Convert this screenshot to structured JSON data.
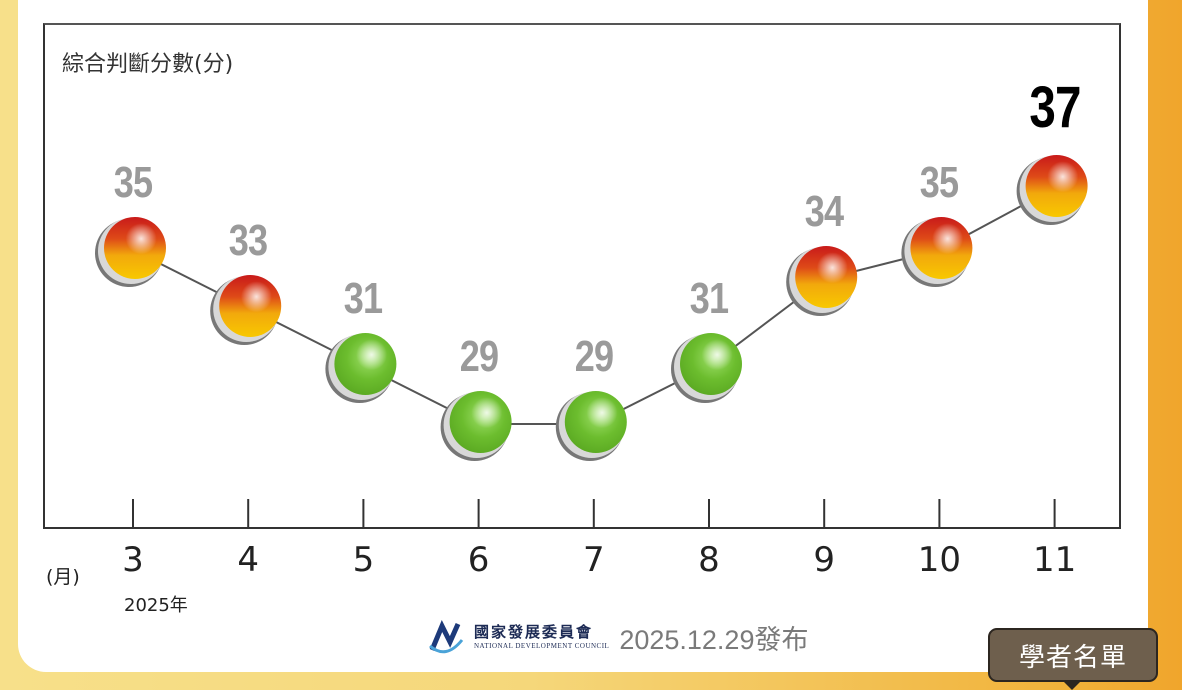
{
  "chart": {
    "ytitle": "綜合判斷分數(分)",
    "xunit": "(月)",
    "year": "2025年"
  },
  "footer": {
    "org_cn": "國家發展委員會",
    "org_en": "NATIONAL DEVELOPMENT COUNCIL",
    "publish": "2025.12.29發布"
  },
  "tooltip_button": "學者名單",
  "colors": {
    "red_yellow_top": "#cc1f1f",
    "red_yellow_bottom": "#f7c400",
    "green": "#6cbd2e",
    "label_gray": "#9a9a9a",
    "latest_label": "#000000",
    "orange_side": "#f0a52c"
  },
  "chart_data": {
    "type": "line",
    "title": "綜合判斷分數(分)",
    "xlabel": "(月)",
    "ylabel": "綜合判斷分數(分)",
    "year": "2025年",
    "categories": [
      "3",
      "4",
      "5",
      "6",
      "7",
      "8",
      "9",
      "10",
      "11"
    ],
    "values": [
      35,
      33,
      31,
      29,
      29,
      31,
      34,
      35,
      37
    ],
    "signals": [
      "yellow-red",
      "yellow-red",
      "green",
      "green",
      "green",
      "green",
      "yellow-red",
      "yellow-red",
      "yellow-red"
    ],
    "grid": false,
    "legend": null
  }
}
